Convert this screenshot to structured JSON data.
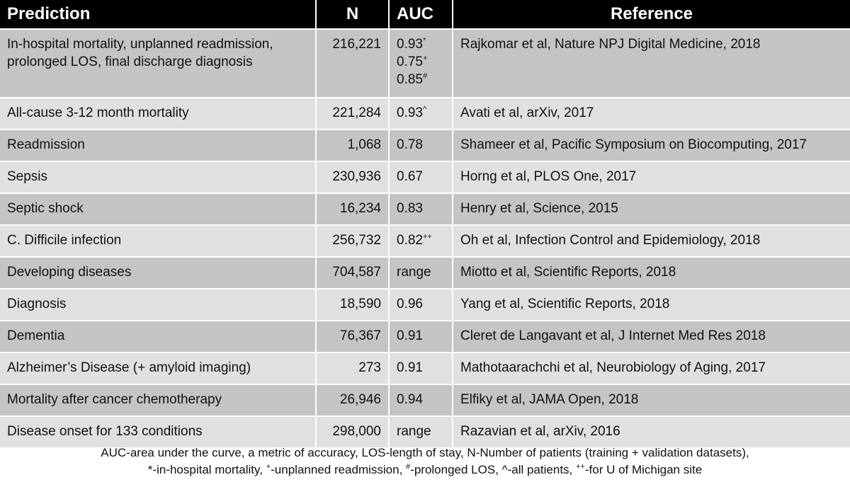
{
  "table": {
    "headers": {
      "prediction": "Prediction",
      "n": "N",
      "auc": "AUC",
      "reference": "Reference"
    },
    "rows": [
      {
        "prediction": "In-hospital mortality, unplanned readmission, prolonged LOS, final discharge diagnosis",
        "n": "216,221",
        "auc": [
          {
            "value": "0.93",
            "mark": "*"
          },
          {
            "value": "0.75",
            "mark": "+"
          },
          {
            "value": "0.85",
            "mark": "#"
          }
        ],
        "reference": "Rajkomar et al, Nature NPJ Digital Medicine, 2018"
      },
      {
        "prediction": "All-cause 3-12 month mortality",
        "n": "221,284",
        "auc": [
          {
            "value": "0.93",
            "mark": "^"
          }
        ],
        "reference": "Avati et al, arXiv, 2017"
      },
      {
        "prediction": "Readmission",
        "n": "1,068",
        "auc": [
          {
            "value": "0.78",
            "mark": ""
          }
        ],
        "reference": "Shameer et al, Pacific Symposium on Biocomputing, 2017"
      },
      {
        "prediction": "Sepsis",
        "n": "230,936",
        "auc": [
          {
            "value": "0.67",
            "mark": ""
          }
        ],
        "reference": "Horng et al, PLOS One, 2017"
      },
      {
        "prediction": "Septic shock",
        "n": "16,234",
        "auc": [
          {
            "value": "0.83",
            "mark": ""
          }
        ],
        "reference": "Henry et al, Science, 2015"
      },
      {
        "prediction": "C. Difficile infection",
        "n": "256,732",
        "auc": [
          {
            "value": "0.82",
            "mark": "++"
          }
        ],
        "reference": "Oh et al, Infection Control and Epidemiology, 2018"
      },
      {
        "prediction": "Developing diseases",
        "n": "704,587",
        "auc": [
          {
            "value": "range",
            "mark": ""
          }
        ],
        "reference": "Miotto et al, Scientific Reports, 2018"
      },
      {
        "prediction": "Diagnosis",
        "n": "18,590",
        "auc": [
          {
            "value": "0.96",
            "mark": ""
          }
        ],
        "reference": "Yang et al, Scientific Reports, 2018"
      },
      {
        "prediction": "Dementia",
        "n": "76,367",
        "auc": [
          {
            "value": "0.91",
            "mark": ""
          }
        ],
        "reference": "Cleret de Langavant et al, J Internet Med Res 2018"
      },
      {
        "prediction": "Alzheimer’s Disease (+ amyloid imaging)",
        "n": "273",
        "auc": [
          {
            "value": "0.91",
            "mark": ""
          }
        ],
        "reference": "Mathotaarachchi et al, Neurobiology of Aging, 2017"
      },
      {
        "prediction": "Mortality after cancer chemotherapy",
        "n": "26,946",
        "auc": [
          {
            "value": "0.94",
            "mark": ""
          }
        ],
        "reference": "Elfiky et al, JAMA Open, 2018"
      },
      {
        "prediction": "Disease onset for 133 conditions",
        "n": "298,000",
        "auc": [
          {
            "value": "range",
            "mark": ""
          }
        ],
        "reference": "Razavian et al, arXiv, 2016"
      }
    ]
  },
  "footnote": {
    "line1": "AUC-area under the curve, a metric of accuracy, LOS-length of stay, N-Number of patients (training + validation datasets),",
    "line2_parts": [
      {
        "mark": "",
        "text": "*-in-hospital mortality, "
      },
      {
        "mark": "+",
        "text": "-unplanned readmission, "
      },
      {
        "mark": "#",
        "text": "-prolonged LOS, ^-all patients, "
      },
      {
        "mark": "++",
        "text": "-for U of Michigan site"
      }
    ]
  },
  "colors": {
    "header_bg": "#000000",
    "header_text": "#ffffff",
    "row_dark": "#c4c4c4",
    "row_light": "#e0e0e0"
  }
}
